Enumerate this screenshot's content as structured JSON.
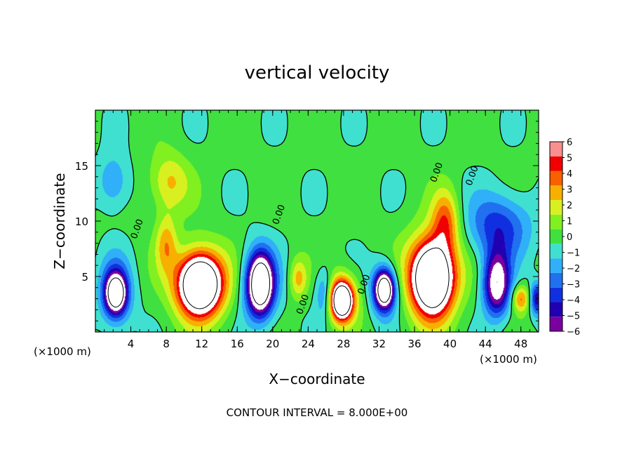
{
  "chart_data": {
    "type": "heatmap",
    "title": "vertical velocity",
    "xlabel": "X−coordinate",
    "ylabel": "Z−coordinate",
    "x_unit_left": "(×1000 m)",
    "x_unit_right": "(×1000 m)",
    "xlim": [
      0,
      50
    ],
    "ylim": [
      0,
      20
    ],
    "x_ticks": [
      4,
      8,
      12,
      16,
      20,
      24,
      28,
      32,
      36,
      40,
      44,
      48
    ],
    "x_tick_labels": [
      "4",
      "8",
      "12",
      "16",
      "20",
      "24",
      "28",
      "32",
      "36",
      "40",
      "44",
      "48"
    ],
    "y_ticks": [
      5,
      10,
      15
    ],
    "y_tick_labels": [
      "5",
      "10",
      "15"
    ],
    "colorbar": {
      "range": [
        -6,
        6
      ],
      "levels": [
        -6,
        -5,
        -4,
        -3,
        -2,
        -1,
        0,
        1,
        2,
        3,
        4,
        5,
        6
      ],
      "tick_labels": [
        "−6",
        "−5",
        "−4",
        "−3",
        "−2",
        "−1",
        "0",
        "1",
        "2",
        "3",
        "4",
        "5",
        "6"
      ],
      "colors": [
        "#7b00a0",
        "#2000b0",
        "#1030e0",
        "#2070f0",
        "#30b0f8",
        "#40e0d0",
        "#40e040",
        "#80f020",
        "#d8f020",
        "#f8b000",
        "#f86000",
        "#f00000",
        "#f89090"
      ]
    },
    "contour_interval_text": "CONTOUR INTERVAL = 8.000E+00",
    "contour_label": "0.00",
    "field": {
      "background": 0.3,
      "features": [
        {
          "x": 2.3,
          "z": 3.5,
          "rx": 1.8,
          "rz": 3.0,
          "w": -5.0
        },
        {
          "x": 2.3,
          "z": 3.5,
          "rx": 1.0,
          "rz": 1.5,
          "w": -9.0
        },
        {
          "x": 2.0,
          "z": 13.5,
          "rx": 1.8,
          "rz": 2.5,
          "w": -2.5
        },
        {
          "x": 8.0,
          "z": 8.0,
          "rx": 1.2,
          "rz": 2.5,
          "w": 3.0
        },
        {
          "x": 8.3,
          "z": 13.5,
          "rx": 2.2,
          "rz": 2.6,
          "w": 3.0
        },
        {
          "x": 11.8,
          "z": 4.3,
          "rx": 3.2,
          "rz": 3.3,
          "w": 6.0
        },
        {
          "x": 11.8,
          "z": 4.3,
          "rx": 2.0,
          "rz": 2.3,
          "w": 9.0
        },
        {
          "x": 18.6,
          "z": 4.3,
          "rx": 2.0,
          "rz": 3.3,
          "w": -5.5
        },
        {
          "x": 18.6,
          "z": 4.3,
          "rx": 1.2,
          "rz": 2.3,
          "w": -8.5
        },
        {
          "x": 22.9,
          "z": 4.8,
          "rx": 1.0,
          "rz": 1.8,
          "w": 3.0
        },
        {
          "x": 25.8,
          "z": 3.5,
          "rx": 1.0,
          "rz": 2.3,
          "w": -3.0
        },
        {
          "x": 27.8,
          "z": 3.0,
          "rx": 1.7,
          "rz": 2.2,
          "w": 6.0
        },
        {
          "x": 27.8,
          "z": 2.8,
          "rx": 1.0,
          "rz": 1.4,
          "w": 9.0
        },
        {
          "x": 32.6,
          "z": 3.8,
          "rx": 1.5,
          "rz": 2.3,
          "w": -5.5
        },
        {
          "x": 32.6,
          "z": 3.8,
          "rx": 0.9,
          "rz": 1.4,
          "w": -8.0
        },
        {
          "x": 38.0,
          "z": 5.0,
          "rx": 3.0,
          "rz": 4.0,
          "w": 6.0
        },
        {
          "x": 38.0,
          "z": 4.8,
          "rx": 2.0,
          "rz": 2.8,
          "w": 9.0
        },
        {
          "x": 39.5,
          "z": 10.0,
          "rx": 1.5,
          "rz": 2.8,
          "w": 4.0
        },
        {
          "x": 45.5,
          "z": 9.5,
          "rx": 3.5,
          "rz": 3.0,
          "w": -4.0
        },
        {
          "x": 45.3,
          "z": 4.3,
          "rx": 1.5,
          "rz": 2.8,
          "w": -8.0
        },
        {
          "x": 48.0,
          "z": 3.0,
          "rx": 1.0,
          "rz": 1.2,
          "w": 4.0
        },
        {
          "x": 49.8,
          "z": 3.0,
          "rx": 0.8,
          "rz": 1.5,
          "w": -5.0
        }
      ]
    }
  }
}
